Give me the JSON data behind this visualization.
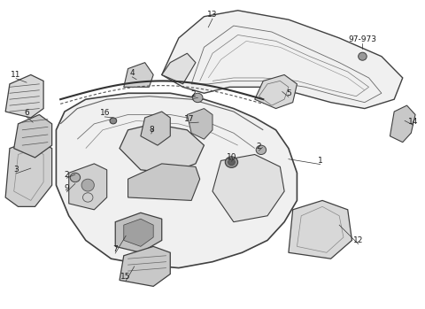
{
  "background_color": "#ffffff",
  "line_color": "#404040",
  "fig_width": 4.8,
  "fig_height": 3.49,
  "dpi": 100
}
